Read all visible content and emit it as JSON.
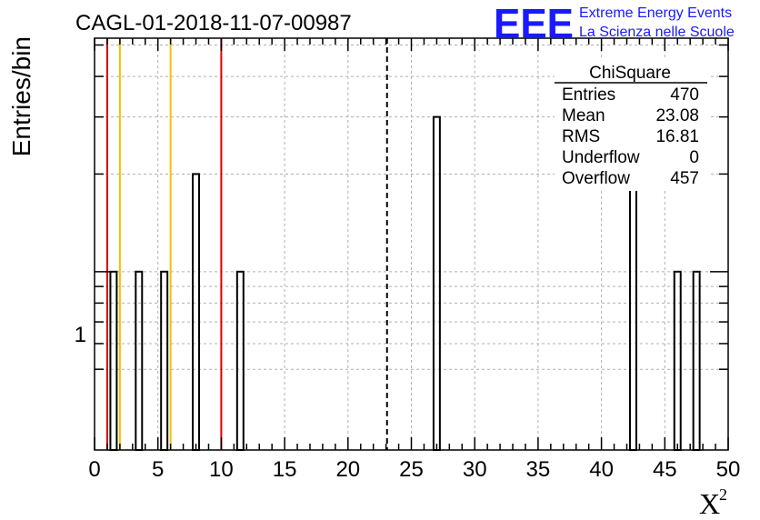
{
  "chart_data": {
    "type": "bar",
    "title": "CAGL-01-2018-11-07-00987",
    "ylabel": "Entries/bin",
    "xlabel": "X",
    "xlabel_superscript": "2",
    "xlim": [
      0,
      50
    ],
    "x_tick_labels": [
      "0",
      "5",
      "10",
      "15",
      "20",
      "25",
      "30",
      "35",
      "40",
      "45",
      "50"
    ],
    "y_scale": "log",
    "y_tick_labels": [
      "1"
    ],
    "grid": true,
    "bin_width": 0.5,
    "bins": [
      {
        "x": 1.5,
        "count": 1
      },
      {
        "x": 3.5,
        "count": 1
      },
      {
        "x": 5.5,
        "count": 1
      },
      {
        "x": 8.0,
        "count": 2
      },
      {
        "x": 11.5,
        "count": 1
      },
      {
        "x": 27.0,
        "count": 3
      },
      {
        "x": 42.5,
        "count": 2
      },
      {
        "x": 46.0,
        "count": 1
      },
      {
        "x": 47.5,
        "count": 1
      }
    ],
    "vertical_lines": [
      {
        "x": 1.0,
        "color": "#dd0000",
        "style": "solid"
      },
      {
        "x": 2.0,
        "color": "#f5c000",
        "style": "solid"
      },
      {
        "x": 6.0,
        "color": "#f5c000",
        "style": "solid"
      },
      {
        "x": 10.0,
        "color": "#dd0000",
        "style": "solid"
      },
      {
        "x": 23.08,
        "color": "#000000",
        "style": "dashed"
      }
    ]
  },
  "stats_box": {
    "title": "ChiSquare",
    "rows": [
      {
        "label": "Entries",
        "value": "470"
      },
      {
        "label": "Mean",
        "value": "23.08"
      },
      {
        "label": "RMS",
        "value": "16.81"
      },
      {
        "label": "Underflow",
        "value": "0"
      },
      {
        "label": "Overflow",
        "value": "457"
      }
    ]
  },
  "logo": {
    "text": "EEE",
    "line1": "Extreme Energy Events",
    "line2": "La Scienza nelle Scuole",
    "color": "#1a1aff"
  }
}
